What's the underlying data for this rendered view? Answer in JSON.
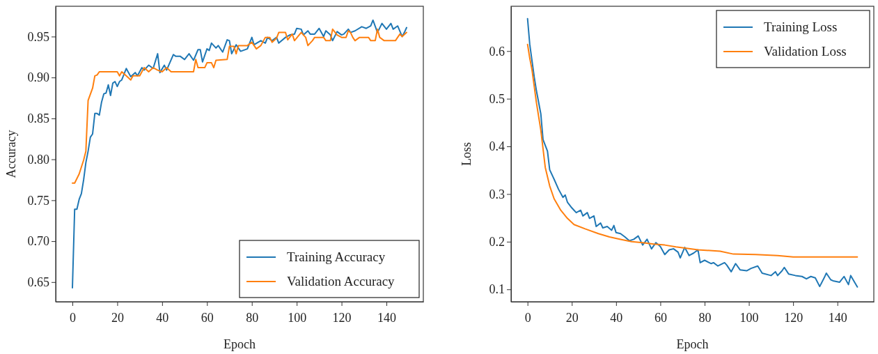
{
  "chart_data": [
    {
      "type": "line",
      "xlabel": "Epoch",
      "ylabel": "Accuracy",
      "xlim": [
        -7.45,
        156.45
      ],
      "ylim": [
        0.626,
        0.987
      ],
      "xticks": [
        0,
        20,
        40,
        60,
        80,
        100,
        120,
        140
      ],
      "yticks": [
        0.65,
        {
          "value": 0.7,
          "label": "0.70"
        },
        0.75,
        {
          "value": 0.8,
          "label": "0.80"
        },
        0.85,
        {
          "value": 0.9,
          "label": "0.90"
        },
        0.95
      ],
      "legend": "bottom right",
      "series": [
        {
          "name": "Training Accuracy",
          "color": "#1f77b4",
          "x": [
            0,
            1,
            2,
            3,
            4,
            5,
            6,
            7,
            8,
            9,
            10,
            11,
            12,
            13,
            14,
            15,
            16,
            17,
            18,
            19,
            20,
            21,
            22,
            24,
            26,
            28,
            29,
            31,
            32,
            34,
            36,
            38,
            39,
            41,
            42,
            45,
            46,
            48,
            50,
            52,
            54,
            56,
            57,
            58,
            60,
            61,
            62,
            64,
            65,
            67,
            69,
            70,
            71,
            73,
            75,
            78,
            80,
            81,
            84,
            86,
            87,
            89,
            91,
            92,
            95,
            97,
            99,
            100,
            102,
            103,
            105,
            106,
            108,
            110,
            112,
            113,
            115,
            116,
            118,
            120,
            121,
            123,
            124,
            126,
            129,
            131,
            133,
            134,
            136,
            138,
            140,
            142,
            143,
            145,
            147,
            148,
            149
          ],
          "values": [
            0.643,
            0.739,
            0.739,
            0.751,
            0.758,
            0.775,
            0.796,
            0.81,
            0.827,
            0.831,
            0.856,
            0.856,
            0.854,
            0.87,
            0.88,
            0.881,
            0.891,
            0.878,
            0.893,
            0.895,
            0.889,
            0.895,
            0.897,
            0.911,
            0.901,
            0.906,
            0.902,
            0.912,
            0.909,
            0.915,
            0.911,
            0.929,
            0.906,
            0.915,
            0.909,
            0.928,
            0.926,
            0.926,
            0.922,
            0.929,
            0.921,
            0.934,
            0.934,
            0.919,
            0.935,
            0.933,
            0.942,
            0.936,
            0.939,
            0.931,
            0.946,
            0.945,
            0.929,
            0.94,
            0.932,
            0.935,
            0.949,
            0.94,
            0.945,
            0.942,
            0.949,
            0.945,
            0.949,
            0.942,
            0.949,
            0.952,
            0.953,
            0.96,
            0.959,
            0.952,
            0.957,
            0.953,
            0.953,
            0.96,
            0.95,
            0.957,
            0.952,
            0.945,
            0.956,
            0.952,
            0.953,
            0.959,
            0.955,
            0.957,
            0.962,
            0.96,
            0.963,
            0.97,
            0.955,
            0.966,
            0.959,
            0.966,
            0.959,
            0.963,
            0.95,
            0.955,
            0.961
          ]
        },
        {
          "name": "Validation Accuracy",
          "color": "#ff7f0e",
          "x": [
            0,
            1,
            3,
            5,
            6,
            7,
            9,
            10,
            11,
            12,
            20,
            21,
            22,
            24,
            26,
            27,
            30,
            32,
            34,
            36,
            38,
            40,
            42,
            44,
            54,
            55,
            56,
            59,
            60,
            62,
            63,
            64,
            69,
            70,
            72,
            73,
            74,
            78,
            80,
            82,
            84,
            86,
            88,
            89,
            91,
            92,
            95,
            96,
            98,
            99,
            102,
            104,
            105,
            107,
            108,
            112,
            113,
            115,
            116,
            118,
            120,
            122,
            123,
            124,
            125,
            126,
            128,
            132,
            133,
            135,
            136,
            137,
            139,
            144,
            146,
            147,
            149
          ],
          "values": [
            0.771,
            0.771,
            0.782,
            0.799,
            0.81,
            0.872,
            0.887,
            0.902,
            0.903,
            0.907,
            0.907,
            0.902,
            0.907,
            0.902,
            0.897,
            0.902,
            0.902,
            0.912,
            0.907,
            0.912,
            0.909,
            0.907,
            0.912,
            0.907,
            0.907,
            0.922,
            0.912,
            0.912,
            0.918,
            0.918,
            0.912,
            0.921,
            0.922,
            0.938,
            0.938,
            0.929,
            0.939,
            0.939,
            0.943,
            0.935,
            0.939,
            0.949,
            0.949,
            0.943,
            0.948,
            0.955,
            0.955,
            0.946,
            0.953,
            0.945,
            0.955,
            0.949,
            0.939,
            0.945,
            0.949,
            0.949,
            0.945,
            0.945,
            0.959,
            0.952,
            0.949,
            0.949,
            0.957,
            0.955,
            0.949,
            0.945,
            0.949,
            0.949,
            0.945,
            0.945,
            0.959,
            0.949,
            0.945,
            0.945,
            0.953,
            0.95,
            0.955
          ]
        }
      ]
    },
    {
      "type": "line",
      "xlabel": "Epoch",
      "ylabel": "Loss",
      "xlim": [
        -7.45,
        156.45
      ],
      "ylim": [
        0.074,
        0.694
      ],
      "xticks": [
        0,
        20,
        40,
        60,
        80,
        100,
        120,
        140
      ],
      "yticks": [
        0.1,
        0.2,
        0.3,
        0.4,
        0.5,
        0.6
      ],
      "legend": "top right",
      "series": [
        {
          "name": "Training Loss",
          "color": "#1f77b4",
          "x": [
            0,
            1,
            3,
            4,
            6,
            7,
            9,
            10,
            12,
            14,
            16,
            17,
            18,
            20,
            21,
            22,
            24,
            25,
            27,
            28,
            30,
            31,
            33,
            34,
            36,
            38,
            39,
            40,
            42,
            44,
            46,
            48,
            50,
            52,
            54,
            56,
            58,
            60,
            62,
            64,
            66,
            68,
            69,
            71,
            73,
            75,
            77,
            78,
            80,
            83,
            84,
            86,
            89,
            90,
            92,
            94,
            96,
            99,
            101,
            104,
            106,
            110,
            112,
            113,
            115,
            116,
            118,
            121,
            124,
            126,
            128,
            130,
            132,
            134,
            135,
            137,
            138,
            141,
            143,
            145,
            146,
            149
          ],
          "values": [
            0.668,
            0.614,
            0.546,
            0.517,
            0.468,
            0.414,
            0.39,
            0.351,
            0.331,
            0.31,
            0.293,
            0.298,
            0.283,
            0.271,
            0.266,
            0.261,
            0.266,
            0.254,
            0.261,
            0.249,
            0.254,
            0.232,
            0.239,
            0.229,
            0.232,
            0.224,
            0.234,
            0.219,
            0.217,
            0.21,
            0.202,
            0.205,
            0.212,
            0.193,
            0.205,
            0.185,
            0.198,
            0.19,
            0.173,
            0.183,
            0.185,
            0.178,
            0.166,
            0.188,
            0.171,
            0.176,
            0.183,
            0.156,
            0.161,
            0.154,
            0.156,
            0.149,
            0.156,
            0.151,
            0.137,
            0.154,
            0.141,
            0.139,
            0.144,
            0.149,
            0.134,
            0.129,
            0.137,
            0.129,
            0.139,
            0.146,
            0.132,
            0.129,
            0.127,
            0.122,
            0.127,
            0.124,
            0.106,
            0.124,
            0.134,
            0.12,
            0.118,
            0.115,
            0.127,
            0.11,
            0.129,
            0.105
          ]
        },
        {
          "name": "Validation Loss",
          "color": "#ff7f0e",
          "x": [
            0,
            1,
            2,
            4,
            6,
            8,
            10,
            12,
            15,
            18,
            21,
            26,
            32,
            37,
            42,
            47,
            52,
            57,
            62,
            67,
            77,
            87,
            93,
            103,
            113,
            120,
            134,
            144,
            149
          ],
          "values": [
            0.614,
            0.585,
            0.561,
            0.492,
            0.434,
            0.356,
            0.317,
            0.29,
            0.266,
            0.249,
            0.236,
            0.227,
            0.217,
            0.21,
            0.205,
            0.2,
            0.198,
            0.195,
            0.193,
            0.189,
            0.183,
            0.18,
            0.174,
            0.173,
            0.171,
            0.168,
            0.168,
            0.168,
            0.168
          ]
        }
      ]
    }
  ]
}
